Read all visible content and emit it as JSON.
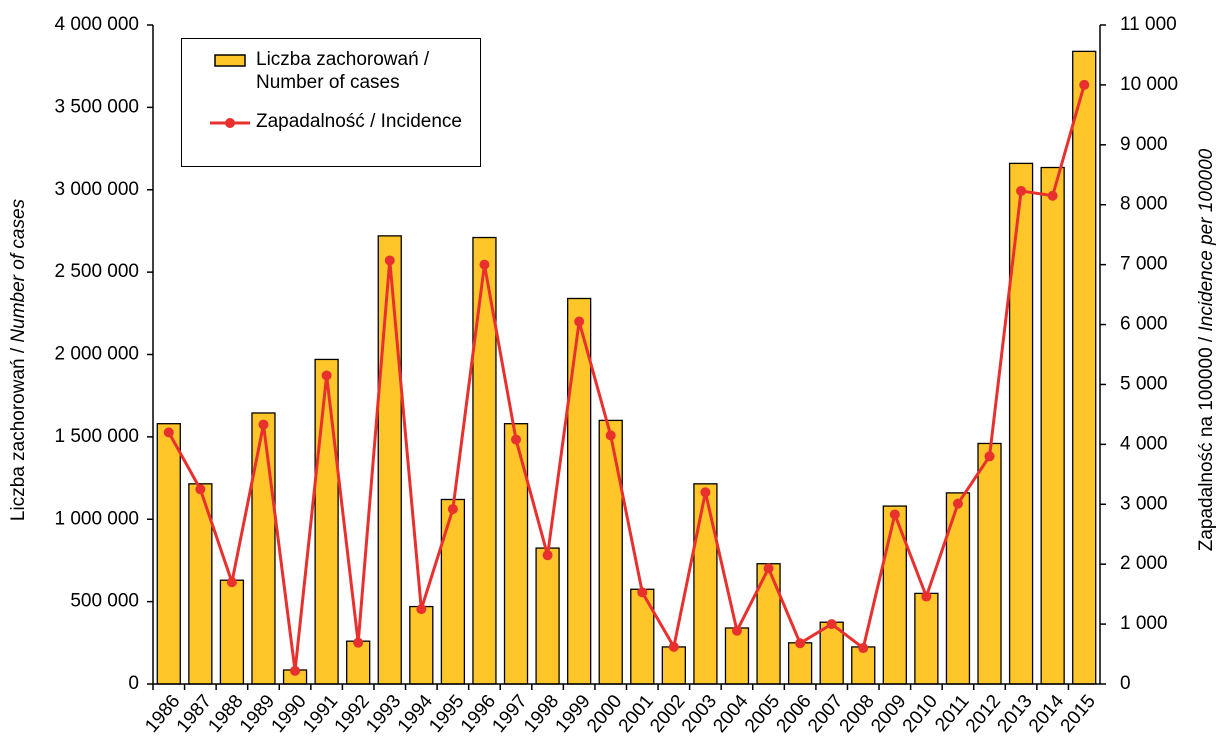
{
  "chart_data": {
    "type": "bar_line",
    "y_label": [
      "Liczba zachorowań  / ",
      "Number of cases"
    ],
    "y2_label": [
      "Zapadalność na 100000 / ",
      "Incidence per 100000"
    ],
    "categories": [
      "1986",
      "1987",
      "1988",
      "1989",
      "1990",
      "1991",
      "1992",
      "1993",
      "1994",
      "1995",
      "1996",
      "1997",
      "1998",
      "1999",
      "2000",
      "2001",
      "2002",
      "2003",
      "2004",
      "2005",
      "2006",
      "2007",
      "2008",
      "2009",
      "2010",
      "2011",
      "2012",
      "2013",
      "2014",
      "2015"
    ],
    "series": [
      {
        "name": "Liczba zachorowań / Number of cases",
        "type": "bar",
        "color": "#ffc629",
        "values": [
          1580000,
          1215000,
          630000,
          1645000,
          85000,
          1970000,
          260000,
          2720000,
          470000,
          1120000,
          2710000,
          1580000,
          825000,
          2340000,
          1600000,
          575000,
          225000,
          1215000,
          340000,
          730000,
          250000,
          375000,
          225000,
          1080000,
          550000,
          1160000,
          1460000,
          3160000,
          3135000,
          3840000
        ]
      },
      {
        "name": "Zapadalność / Incidence",
        "type": "line",
        "axis": "y2",
        "color": "#e8312f",
        "values": [
          4200,
          3250,
          1700,
          4330,
          220,
          5150,
          690,
          7070,
          1250,
          2920,
          7000,
          4080,
          2150,
          6050,
          4150,
          1530,
          620,
          3200,
          890,
          1930,
          680,
          1000,
          600,
          2830,
          1460,
          3010,
          3800,
          8230,
          8150,
          10000
        ]
      }
    ],
    "ylim": [
      0,
      4000000
    ],
    "yticks": [
      0,
      {
        "value": 500000,
        "label": "500 000"
      },
      {
        "value": 1000000,
        "label": "1 000 000"
      },
      {
        "value": 1500000,
        "label": "1 500 000"
      },
      {
        "value": 2000000,
        "label": "2 000 000"
      },
      {
        "value": 2500000,
        "label": "2 500 000"
      },
      {
        "value": 3000000,
        "label": "3 000 000"
      },
      {
        "value": 3500000,
        "label": "3 500 000"
      },
      {
        "value": 4000000,
        "label": "4 000 000"
      }
    ],
    "y2lim": [
      0,
      11000
    ],
    "y2ticks": [
      0,
      {
        "value": 1000,
        "label": "1 000"
      },
      {
        "value": 2000,
        "label": "2 000"
      },
      {
        "value": 3000,
        "label": "3 000"
      },
      {
        "value": 4000,
        "label": "4 000"
      },
      {
        "value": 5000,
        "label": "5 000"
      },
      {
        "value": 6000,
        "label": "6 000"
      },
      {
        "value": 7000,
        "label": "7 000"
      },
      {
        "value": 8000,
        "label": "8 000"
      },
      {
        "value": 9000,
        "label": "9 000"
      },
      {
        "value": 10000,
        "label": "10 000"
      },
      {
        "value": 11000,
        "label": "11 000"
      }
    ],
    "grid": false,
    "legend": "upper left"
  }
}
